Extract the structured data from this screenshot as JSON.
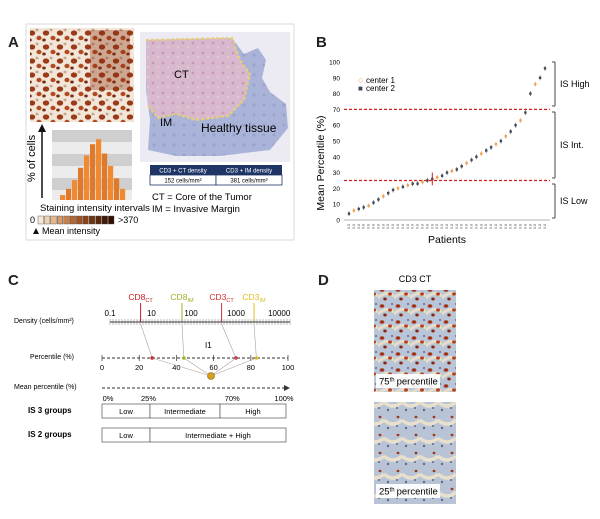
{
  "panels": {
    "a": {
      "letter": "A",
      "ylabel": "% of cells",
      "xlabel": "Staining intensity intervals",
      "scale_min": "0",
      "scale_max": ">370",
      "mean_intensity": "Mean intensity",
      "region_ct": "CT",
      "region_im": "IM",
      "region_healthy": "Healthy tissue",
      "density_headers": [
        "CD3 + CT density",
        "CD3 + IM density"
      ],
      "density_values": [
        "152 cells/mm²",
        "381 cells/mm²"
      ],
      "legend_ct": "CT = Core of the Tumor",
      "legend_im": "IM = Invasive Margin",
      "histogram_heights": [
        0.08,
        0.18,
        0.32,
        0.52,
        0.72,
        0.9,
        0.98,
        0.75,
        0.55,
        0.35,
        0.18
      ]
    },
    "b": {
      "letter": "B",
      "ylabel": "Mean Percentile (%)",
      "xlabel": "Patients",
      "legend": [
        "center 1",
        "center 2"
      ],
      "bands": [
        "IS High",
        "IS Int.",
        "IS Low"
      ],
      "yticks": [
        "0",
        "10",
        "20",
        "30",
        "40",
        "50",
        "60",
        "70",
        "80",
        "90",
        "100"
      ],
      "thresholds": [
        25,
        70
      ],
      "colors": {
        "center1": "#f0a050",
        "center2": "#404858",
        "threshold": "#d02020"
      },
      "values": [
        4,
        6,
        7,
        8,
        9,
        11,
        13,
        15,
        17,
        19,
        20,
        21,
        22,
        23,
        23,
        24,
        25,
        26,
        27,
        28,
        30,
        31,
        32,
        34,
        36,
        38,
        40,
        42,
        44,
        46,
        48,
        50,
        53,
        56,
        60,
        63,
        68,
        80,
        86,
        90,
        96
      ],
      "centers": [
        2,
        1,
        2,
        2,
        1,
        2,
        2,
        1,
        2,
        2,
        1,
        2,
        1,
        2,
        2,
        1,
        2,
        2,
        1,
        2,
        2,
        1,
        2,
        2,
        1,
        2,
        2,
        1,
        2,
        2,
        1,
        2,
        1,
        2,
        2,
        1,
        2,
        2,
        1,
        2,
        2
      ],
      "xtick_labels": [
        "0.8",
        "0.8",
        "0.8",
        "0.8",
        "0.8",
        "0.8",
        "0.8",
        "0.8",
        "0.8",
        "0.8",
        "0.8",
        "0.8",
        "0.8",
        "0.8",
        "0.8",
        "0.8",
        "0.8",
        "0.8",
        "0.8",
        "0.8",
        "0.8",
        "0.8",
        "0.8",
        "0.8",
        "0.8",
        "0.8",
        "0.8",
        "0.8",
        "0.8",
        "0.8",
        "0.8",
        "0.8",
        "0.8",
        "0.8",
        "0.8",
        "0.8",
        "0.8",
        "0.8",
        "0.8",
        "0.8",
        "0.8"
      ]
    },
    "c": {
      "letter": "C",
      "markers": [
        {
          "main": "CD8",
          "sub": "CT",
          "color": "#c02020",
          "pos": 0.17
        },
        {
          "main": "CD8",
          "sub": "IM",
          "color": "#a0b020",
          "pos": 0.4
        },
        {
          "main": "CD3",
          "sub": "CT",
          "color": "#d03030",
          "pos": 0.62
        },
        {
          "main": "CD3",
          "sub": "IM",
          "color": "#e0c020",
          "pos": 0.8
        }
      ],
      "density_label": "Density (cells/mm²)",
      "density_ticks": [
        "0.1",
        "10",
        "100",
        "1000",
        "10000"
      ],
      "percentile_label": "Percentile (%)",
      "percentile_ticks": [
        "0",
        "20",
        "40",
        "60",
        "80",
        "100"
      ],
      "i1_label": "I1",
      "mean_label": "Mean percentile (%)",
      "mean_ticks": [
        "0%",
        "25%",
        "70%",
        "100%"
      ],
      "is3_label": "IS 3 groups",
      "is3_cells": [
        "Low",
        "Intermediate",
        "High"
      ],
      "is2_label": "IS 2 groups",
      "is2_cells": [
        "Low",
        "Intermediate + High"
      ]
    },
    "d": {
      "letter": "D",
      "title": "CD3 CT",
      "top_label_num": "75",
      "top_label_sup": "th",
      "top_label_word": "percentile",
      "bottom_label_num": "25",
      "bottom_label_sup": "th",
      "bottom_label_word": "percentile"
    }
  }
}
